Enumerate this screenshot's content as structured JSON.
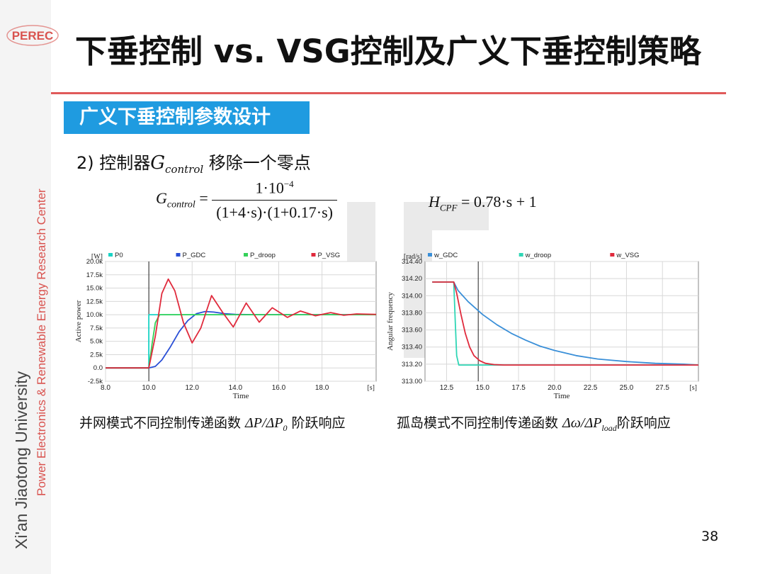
{
  "branding": {
    "logo_text": "PEREC",
    "university": "Xi'an Jiaotong University",
    "center": "Power Electronics & Renewable Energy Research Center",
    "brand_red": "#d9534f"
  },
  "slide": {
    "title": "下垂控制 vs. VSG控制及广义下垂控制策略",
    "section": "广义下垂控制参数设计",
    "item_prefix": "2) 控制器",
    "item_symbol": "G",
    "item_symbol_sub": "control",
    "item_suffix": " 移除一个零点",
    "page_number": "38"
  },
  "formulas": {
    "g_lhs": "G",
    "g_lhs_sub": "control",
    "g_eq": " =",
    "g_num": "1·10",
    "g_num_exp": "−4",
    "g_den": "(1+4·s)·(1+0.17·s)",
    "h_lhs": "H",
    "h_lhs_sub": "CPF",
    "h_rhs": " = 0.78·s + 1"
  },
  "captions": {
    "left_prefix": "并网模式不同控制传递函数 ",
    "left_math": "ΔP/ΔP",
    "left_math_sub": "0",
    "left_suffix": " 阶跃响应",
    "right_prefix": "孤岛模式不同控制传递函数 ",
    "right_math": "Δω/ΔP",
    "right_math_sub": "load",
    "right_suffix": "阶跃响应"
  },
  "chart_data": [
    {
      "type": "line",
      "unit_label": "[W]",
      "xunit_label": "[s]",
      "xlabel": "Time",
      "ylabel": "Active power",
      "xlim": [
        8.0,
        20.5
      ],
      "ylim": [
        -2500,
        20000
      ],
      "xticks": [
        "8.0",
        "10.0",
        "12.0",
        "14.0",
        "16.0",
        "18.0"
      ],
      "xtick_values": [
        8,
        10,
        12,
        14,
        16,
        18
      ],
      "yticks": [
        "20.0k",
        "17.5k",
        "15.0k",
        "12.5k",
        "10.0k",
        "7.5k",
        "5.0k",
        "2.5k",
        "0.0",
        "-2.5k"
      ],
      "ytick_values": [
        20000,
        17500,
        15000,
        12500,
        10000,
        7500,
        5000,
        2500,
        0,
        -2500
      ],
      "cursor_x": 10.0,
      "legend_position": "top",
      "series": [
        {
          "name": "P0",
          "color": "#19d3c5",
          "x": [
            8.0,
            10.0,
            10.0,
            20.5
          ],
          "y": [
            0,
            0,
            10000,
            10000
          ]
        },
        {
          "name": "P_GDC",
          "color": "#2a4fd6",
          "x": [
            8.0,
            10.0,
            10.3,
            10.6,
            11.0,
            11.4,
            11.8,
            12.2,
            12.6,
            13.0,
            13.5,
            14.0,
            15.0,
            16.0,
            18.0,
            20.5
          ],
          "y": [
            0,
            0,
            300,
            1500,
            4000,
            6800,
            8900,
            10200,
            10600,
            10500,
            10200,
            10050,
            10000,
            10000,
            10000,
            10000
          ]
        },
        {
          "name": "P_droop",
          "color": "#35d15a",
          "x": [
            8.0,
            10.0,
            10.15,
            10.3,
            10.5,
            20.5
          ],
          "y": [
            0,
            0,
            4500,
            8500,
            10000,
            10000
          ]
        },
        {
          "name": "P_VSG",
          "color": "#e02a3c",
          "x": [
            8.0,
            10.0,
            10.3,
            10.6,
            10.9,
            11.2,
            11.6,
            12.0,
            12.4,
            12.9,
            13.4,
            13.9,
            14.5,
            15.1,
            15.7,
            16.4,
            17.0,
            17.7,
            18.4,
            19.0,
            19.6,
            20.5
          ],
          "y": [
            0,
            0,
            6000,
            14000,
            16700,
            14500,
            8500,
            4700,
            7500,
            13600,
            10500,
            7700,
            12200,
            8600,
            11300,
            9500,
            10700,
            9800,
            10400,
            9900,
            10150,
            10050
          ]
        }
      ]
    },
    {
      "type": "line",
      "unit_label": "[rad/s]",
      "xunit_label": "[s]",
      "xlabel": "Time",
      "ylabel": "Angular frequency",
      "xlim": [
        11.0,
        30.0
      ],
      "ylim": [
        313.0,
        314.4
      ],
      "xticks": [
        "12.5",
        "15.0",
        "17.5",
        "20.0",
        "22.5",
        "25.0",
        "27.5"
      ],
      "xtick_values": [
        12.5,
        15.0,
        17.5,
        20.0,
        22.5,
        25.0,
        27.5
      ],
      "yticks": [
        "314.40",
        "314.20",
        "314.00",
        "313.80",
        "313.60",
        "313.40",
        "313.20",
        "313.00"
      ],
      "ytick_values": [
        314.4,
        314.2,
        314.0,
        313.8,
        313.6,
        313.4,
        313.2,
        313.0
      ],
      "cursor_x": 14.7,
      "legend_position": "top",
      "series": [
        {
          "name": "w_GDC",
          "color": "#3a8fd8",
          "x": [
            11.5,
            13.0,
            13.3,
            14.0,
            15.0,
            16.0,
            17.0,
            18.0,
            19.0,
            20.0,
            21.5,
            23.0,
            25.0,
            27.0,
            29.0,
            30.0
          ],
          "y": [
            314.16,
            314.16,
            314.06,
            313.93,
            313.78,
            313.66,
            313.56,
            313.48,
            313.41,
            313.36,
            313.3,
            313.26,
            313.23,
            313.21,
            313.2,
            313.19
          ]
        },
        {
          "name": "w_droop",
          "color": "#2fd6b5",
          "x": [
            11.5,
            13.0,
            13.1,
            13.2,
            13.35,
            30.0
          ],
          "y": [
            314.16,
            314.16,
            313.7,
            313.3,
            313.19,
            313.19
          ]
        },
        {
          "name": "w_VSG",
          "color": "#e02a3c",
          "x": [
            11.5,
            13.0,
            13.2,
            13.5,
            13.8,
            14.1,
            14.4,
            14.8,
            15.2,
            15.8,
            16.5,
            30.0
          ],
          "y": [
            314.16,
            314.16,
            314.03,
            313.78,
            313.56,
            313.4,
            313.3,
            313.24,
            313.21,
            313.195,
            313.19,
            313.19
          ]
        }
      ]
    }
  ]
}
